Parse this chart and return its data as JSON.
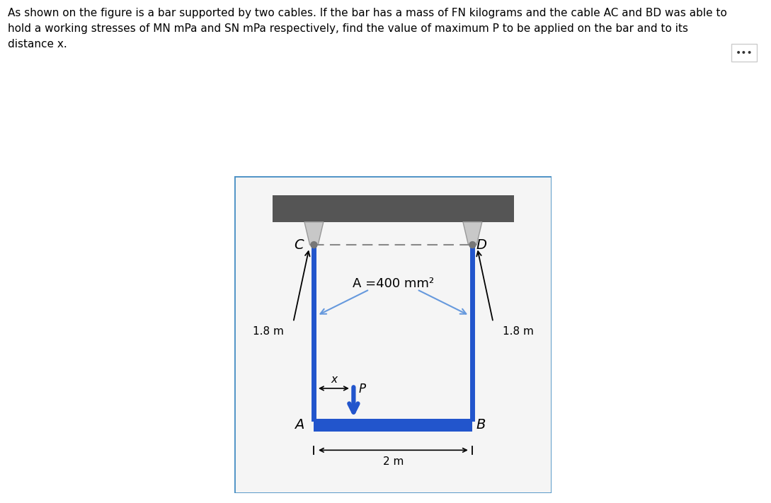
{
  "fig_width": 10.89,
  "fig_height": 7.11,
  "dpi": 100,
  "text_block": "As shown on the figure is a bar supported by two cables. If the bar has a mass of FN kilograms and the cable AC and BD was able to\nhold a working stresses of MN mPa and SN mPa respectively, find the value of maximum P to be applied on the bar and to its\ndistance x.",
  "text_fontsize": 11,
  "border_color": "#4a90c4",
  "cable_color": "#2255cc",
  "ceiling_color": "#555555",
  "dashed_color": "#888888",
  "label_C": "C",
  "label_D": "D",
  "label_A": "A",
  "label_B": "B",
  "label_P": "P",
  "label_x": "x",
  "label_area": "A =400 mm²",
  "label_18_left": "1.8 m",
  "label_18_right": "1.8 m",
  "label_2m": "2 m",
  "bg_color": "#ffffff",
  "box_bg": "#f5f5f5"
}
